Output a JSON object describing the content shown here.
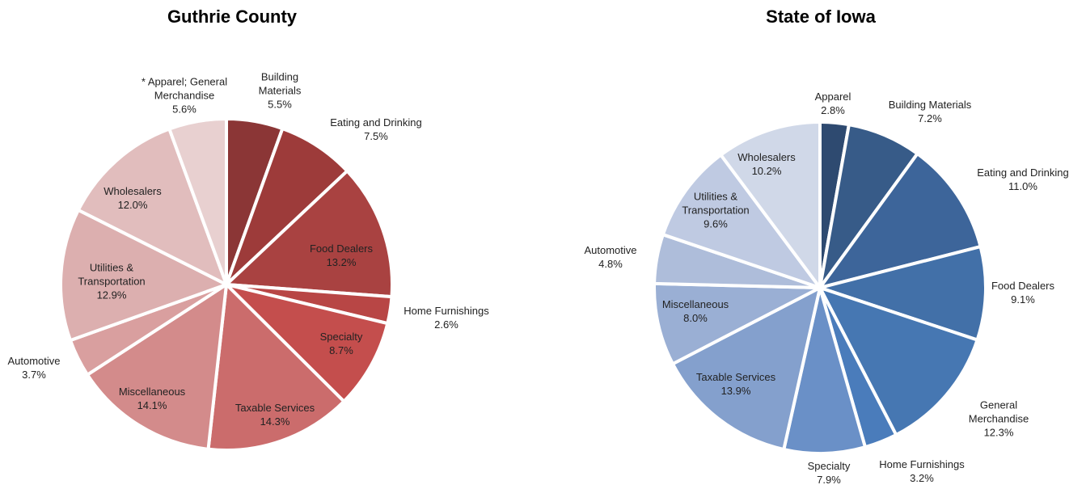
{
  "chart_data": [
    {
      "type": "pie",
      "title": "Guthrie County",
      "categories": [
        "Building Materials",
        "Eating and Drinking",
        "Food Dealers",
        "Home Furnishings",
        "Specialty",
        "Taxable Services",
        "Miscellaneous",
        "Automotive",
        "Utilities & Transportation",
        "Wholesalers",
        "* Apparel; General Merchandise"
      ],
      "values": [
        5.5,
        7.5,
        13.2,
        2.6,
        8.7,
        14.3,
        14.1,
        3.7,
        12.9,
        12.0,
        5.6
      ],
      "value_labels": [
        "5.5%",
        "7.5%",
        "13.2%",
        "2.6%",
        "8.7%",
        "14.3%",
        "14.1%",
        "3.7%",
        "12.9%",
        "12.0%",
        "5.6%"
      ],
      "colors": [
        "#8b3636",
        "#9d3b3a",
        "#a94241",
        "#b84645",
        "#c44e4d",
        "#cb6c6c",
        "#d38b8b",
        "#d99f9f",
        "#dcafaf",
        "#e1bdbd",
        "#e8d0d0"
      ]
    },
    {
      "type": "pie",
      "title": "State of Iowa",
      "categories": [
        "Apparel",
        "Building Materials",
        "Eating and Drinking",
        "Food Dealers",
        "General Merchandise",
        "Home Furnishings",
        "Specialty",
        "Taxable Services",
        "Miscellaneous",
        "Automotive",
        "Utilities & Transportation",
        "Wholesalers"
      ],
      "values": [
        2.8,
        7.2,
        11.0,
        9.1,
        12.3,
        3.2,
        7.9,
        13.9,
        8.0,
        4.8,
        9.6,
        10.2
      ],
      "value_labels": [
        "2.8%",
        "7.2%",
        "11.0%",
        "9.1%",
        "12.3%",
        "3.2%",
        "7.9%",
        "13.9%",
        "8.0%",
        "4.8%",
        "9.6%",
        "10.2%"
      ],
      "colors": [
        "#2e4a70",
        "#375b88",
        "#3d659a",
        "#4270a8",
        "#4677b2",
        "#4a7cbb",
        "#6a90c7",
        "#84a0cd",
        "#9aafd4",
        "#aebdda",
        "#bfcae2",
        "#d0d8e8"
      ]
    }
  ]
}
